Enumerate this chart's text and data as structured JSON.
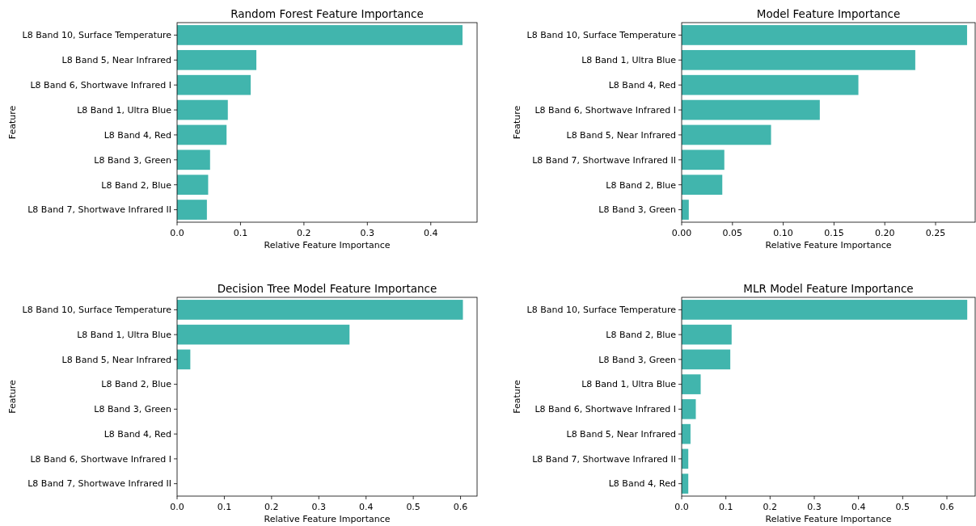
{
  "chart_data": [
    {
      "type": "bar",
      "orientation": "horizontal",
      "title": "Random Forest Feature Importance",
      "xlabel": "Relative Feature Importance",
      "ylabel": "Feature",
      "categories": [
        "L8 Band 10, Surface Temperature",
        "L8 Band 5, Near Infrared",
        "L8 Band 6, Shortwave Infrared I",
        "L8 Band 1, Ultra Blue",
        "L8 Band 4, Red",
        "L8 Band 3, Green",
        "L8 Band 2, Blue",
        "L8 Band 7, Shortwave Infrared II"
      ],
      "values": [
        0.45,
        0.125,
        0.116,
        0.08,
        0.078,
        0.052,
        0.049,
        0.047
      ],
      "color": "#41b5ad",
      "xlim": [
        0,
        0.473
      ],
      "xticks": [
        {
          "value": 0,
          "label": "0.0"
        },
        {
          "value": 0.1,
          "label": "0.1"
        },
        {
          "value": 0.2,
          "label": "0.2"
        },
        {
          "value": 0.3,
          "label": "0.3"
        },
        {
          "value": 0.4,
          "label": "0.4"
        }
      ],
      "grid": false
    },
    {
      "type": "bar",
      "orientation": "horizontal",
      "title": "Model Feature Importance",
      "xlabel": "Relative Feature Importance",
      "ylabel": "Feature",
      "categories": [
        "L8 Band 10, Surface Temperature",
        "L8 Band 1, Ultra Blue",
        "L8 Band 4, Red",
        "L8 Band 6, Shortwave Infrared I",
        "L8 Band 5, Near Infrared",
        "L8 Band 7, Shortwave Infrared II",
        "L8 Band 2, Blue",
        "L8 Band 3, Green"
      ],
      "values": [
        0.281,
        0.23,
        0.174,
        0.136,
        0.088,
        0.042,
        0.04,
        0.007
      ],
      "color": "#41b5ad",
      "xlim": [
        0,
        0.289
      ],
      "xticks": [
        {
          "value": 0,
          "label": "0.00"
        },
        {
          "value": 0.05,
          "label": "0.05"
        },
        {
          "value": 0.1,
          "label": "0.10"
        },
        {
          "value": 0.15,
          "label": "0.15"
        },
        {
          "value": 0.2,
          "label": "0.20"
        },
        {
          "value": 0.25,
          "label": "0.25"
        }
      ],
      "grid": false
    },
    {
      "type": "bar",
      "orientation": "horizontal",
      "title": "Decision Tree Model Feature Importance",
      "xlabel": "Relative Feature Importance",
      "ylabel": "Feature",
      "categories": [
        "L8 Band 10, Surface Temperature",
        "L8 Band 1, Ultra Blue",
        "L8 Band 5, Near Infrared",
        "L8 Band 2, Blue",
        "L8 Band 3, Green",
        "L8 Band 4, Red",
        "L8 Band 6, Shortwave Infrared I",
        "L8 Band 7, Shortwave Infrared II"
      ],
      "values": [
        0.605,
        0.365,
        0.028,
        0,
        0,
        0,
        0,
        0
      ],
      "color": "#41b5ad",
      "xlim": [
        0,
        0.635
      ],
      "xticks": [
        {
          "value": 0,
          "label": "0.0"
        },
        {
          "value": 0.1,
          "label": "0.1"
        },
        {
          "value": 0.2,
          "label": "0.2"
        },
        {
          "value": 0.3,
          "label": "0.3"
        },
        {
          "value": 0.4,
          "label": "0.4"
        },
        {
          "value": 0.5,
          "label": "0.5"
        },
        {
          "value": 0.6,
          "label": "0.6"
        }
      ],
      "grid": false
    },
    {
      "type": "bar",
      "orientation": "horizontal",
      "title": "MLR Model Feature Importance",
      "xlabel": "Relative Feature Importance",
      "ylabel": "Feature",
      "categories": [
        "L8 Band 10, Surface Temperature",
        "L8 Band 2, Blue",
        "L8 Band 3, Green",
        "L8 Band 1, Ultra Blue",
        "L8 Band 6, Shortwave Infrared I",
        "L8 Band 5, Near Infrared",
        "L8 Band 7, Shortwave Infrared II",
        "L8 Band 4, Red"
      ],
      "values": [
        0.646,
        0.113,
        0.11,
        0.043,
        0.032,
        0.02,
        0.015,
        0.015
      ],
      "color": "#41b5ad",
      "xlim": [
        0,
        0.664
      ],
      "xticks": [
        {
          "value": 0,
          "label": "0.0"
        },
        {
          "value": 0.1,
          "label": "0.1"
        },
        {
          "value": 0.2,
          "label": "0.2"
        },
        {
          "value": 0.3,
          "label": "0.3"
        },
        {
          "value": 0.4,
          "label": "0.4"
        },
        {
          "value": 0.5,
          "label": "0.5"
        },
        {
          "value": 0.6,
          "label": "0.6"
        }
      ],
      "grid": false
    }
  ]
}
